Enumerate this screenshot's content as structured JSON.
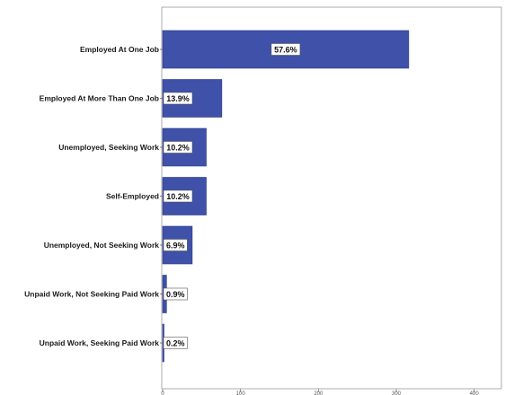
{
  "chart_data": {
    "type": "bar",
    "orientation": "horizontal",
    "categories": [
      "Employed At One Job",
      "Employed At More Than One Job",
      "Unemployed, Seeking Work",
      "Self-Employed",
      "Unemployed, Not Seeking Work",
      "Unpaid Work, Not Seeking Paid Work",
      "Unpaid Work, Seeking Paid Work"
    ],
    "values": [
      316,
      76,
      56,
      56,
      38,
      5,
      1
    ],
    "percent_labels": [
      "57.6%",
      "13.9%",
      "10.2%",
      "10.2%",
      "6.9%",
      "0.9%",
      "0.2%"
    ],
    "x_ticks": [
      0,
      100,
      200,
      300,
      400
    ],
    "x_tick_labels": [
      "0",
      "100",
      "200",
      "300",
      "400"
    ],
    "xlim": [
      0,
      435
    ],
    "bar_color": "#3f51a8",
    "grid": false,
    "legend": "none"
  }
}
